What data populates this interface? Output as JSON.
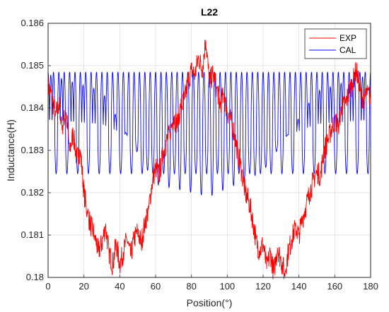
{
  "chart_data": {
    "type": "line",
    "title": "L22",
    "xlabel": "Position(°)",
    "ylabel": "Inductance(H)",
    "xlim": [
      0,
      180
    ],
    "ylim": [
      0.18,
      0.186
    ],
    "xticks": [
      0,
      20,
      40,
      60,
      80,
      100,
      120,
      140,
      160,
      180
    ],
    "yticks": [
      0.18,
      0.181,
      0.182,
      0.183,
      0.184,
      0.185,
      0.186
    ],
    "xtick_labels": [
      "0",
      "20",
      "40",
      "60",
      "80",
      "100",
      "120",
      "140",
      "160",
      "180"
    ],
    "ytick_labels": [
      "0.18",
      "0.181",
      "0.182",
      "0.183",
      "0.184",
      "0.185",
      "0.186"
    ],
    "grid": true,
    "legend_position": "top-right",
    "series": [
      {
        "name": "EXP",
        "color": "#ff0000",
        "x": [
          0,
          2,
          4,
          6,
          8,
          10,
          12,
          14,
          16,
          18,
          20,
          22,
          24,
          26,
          28,
          30,
          32,
          34,
          36,
          38,
          40,
          42,
          44,
          46,
          48,
          50,
          52,
          54,
          56,
          58,
          60,
          62,
          64,
          66,
          68,
          70,
          72,
          74,
          76,
          78,
          80,
          82,
          84,
          86,
          88,
          90,
          92,
          94,
          96,
          98,
          100,
          102,
          104,
          106,
          108,
          110,
          112,
          114,
          116,
          118,
          120,
          122,
          124,
          126,
          128,
          130,
          132,
          134,
          136,
          138,
          140,
          142,
          144,
          146,
          148,
          150,
          152,
          154,
          156,
          158,
          160,
          162,
          164,
          166,
          168,
          170,
          172,
          174,
          176,
          178,
          180
        ],
        "values": [
          0.1845,
          0.1843,
          0.1838,
          0.1841,
          0.1836,
          0.1839,
          0.183,
          0.1834,
          0.1828,
          0.183,
          0.182,
          0.1815,
          0.1812,
          0.181,
          0.1806,
          0.1808,
          0.1812,
          0.1806,
          0.1803,
          0.1808,
          0.1803,
          0.1806,
          0.1809,
          0.1805,
          0.1809,
          0.1811,
          0.1808,
          0.1813,
          0.1816,
          0.1822,
          0.1826,
          0.1824,
          0.1829,
          0.1832,
          0.1834,
          0.1838,
          0.1836,
          0.184,
          0.1842,
          0.1846,
          0.1849,
          0.1848,
          0.1852,
          0.1849,
          0.1856,
          0.1846,
          0.1848,
          0.1845,
          0.1841,
          0.1843,
          0.1839,
          0.1837,
          0.1834,
          0.1829,
          0.1825,
          0.182,
          0.1818,
          0.1814,
          0.1809,
          0.1806,
          0.1808,
          0.1802,
          0.1806,
          0.1801,
          0.1807,
          0.1804,
          0.1801,
          0.1806,
          0.1809,
          0.1812,
          0.181,
          0.1814,
          0.1817,
          0.182,
          0.1823,
          0.1825,
          0.1824,
          0.183,
          0.1832,
          0.1835,
          0.1837,
          0.1836,
          0.184,
          0.1841,
          0.1844,
          0.1846,
          0.1849,
          0.1844,
          0.1842,
          0.1843,
          0.1843
        ]
      },
      {
        "name": "CAL",
        "color": "#0000ff",
        "x_start": 0,
        "x_end": 180,
        "period": 3,
        "mean": 0.18335,
        "amplitude": 0.00145,
        "envelope": [
          0.1848,
          0.1844,
          0.1822,
          0.1819,
          0.1825,
          0.1844,
          0.1848
        ]
      }
    ]
  }
}
